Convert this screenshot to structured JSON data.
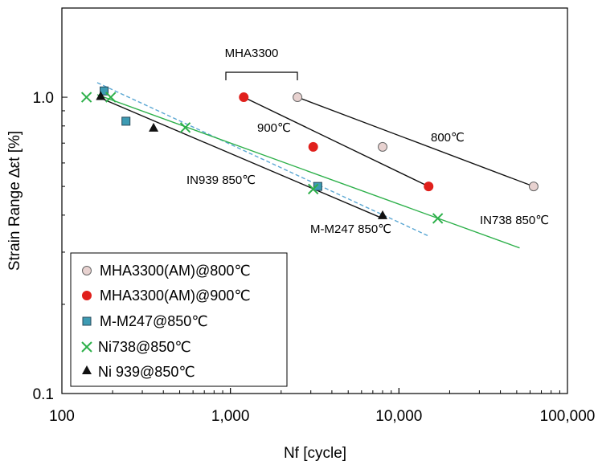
{
  "chart_data": {
    "type": "scatter",
    "xscale": "log",
    "yscale": "log",
    "xlim": [
      100,
      100000
    ],
    "ylim": [
      0.1,
      2.0
    ],
    "xlabel": "Nf  [cycle]",
    "ylabel": "Strain Range ∆εt  [%]",
    "x_ticks": [
      {
        "value": 100,
        "label": "100"
      },
      {
        "value": 1000,
        "label": "1,000"
      },
      {
        "value": 10000,
        "label": "10,000"
      },
      {
        "value": 100000,
        "label": "100,000"
      }
    ],
    "y_ticks": [
      {
        "value": 0.1,
        "label": "0.1"
      },
      {
        "value": 1.0,
        "label": "1.0"
      }
    ],
    "grid": false,
    "legend_position": "bottom-left",
    "series": [
      {
        "name": "MHA3300(AM)@800℃",
        "marker": "circle",
        "color": "#e8d2d0",
        "stroke": "#666666",
        "points": [
          [
            2500,
            1.0
          ],
          [
            8000,
            0.68
          ],
          [
            63000,
            0.5
          ]
        ],
        "fit": {
          "style": "solid",
          "color": "#111111",
          "from": [
            2500,
            1.0
          ],
          "to": [
            63000,
            0.5
          ]
        }
      },
      {
        "name": "MHA3300(AM)@900℃",
        "marker": "circle",
        "color": "#e0201c",
        "stroke": "#e0201c",
        "points": [
          [
            1200,
            1.0
          ],
          [
            3100,
            0.68
          ],
          [
            15000,
            0.5
          ]
        ],
        "fit": {
          "style": "solid",
          "color": "#111111",
          "from": [
            1200,
            1.0
          ],
          "to": [
            15000,
            0.5
          ]
        }
      },
      {
        "name": "M-M247@850℃",
        "marker": "square",
        "color": "#3d9bb3",
        "stroke": "#2a4a5a",
        "points": [
          [
            178,
            1.05
          ],
          [
            240,
            0.83
          ],
          [
            3300,
            0.5
          ]
        ],
        "fit": {
          "style": "dashed",
          "color": "#5aa7d3",
          "from": [
            162,
            1.12
          ],
          "to": [
            15000,
            0.34
          ]
        }
      },
      {
        "name": "Ni738@850℃",
        "marker": "x",
        "color": "#2db04a",
        "stroke": "#2db04a",
        "points": [
          [
            140,
            1.0
          ],
          [
            195,
            1.0
          ],
          [
            540,
            0.79
          ],
          [
            3100,
            0.49
          ],
          [
            17000,
            0.39
          ]
        ],
        "fit": {
          "style": "solid",
          "color": "#2db04a",
          "from": [
            162,
            1.02
          ],
          "to": [
            52000,
            0.31
          ]
        }
      },
      {
        "name": "Ni939@850℃",
        "marker": "triangle",
        "color": "#111111",
        "stroke": "#111111",
        "points": [
          [
            170,
            1.01
          ],
          [
            350,
            0.79
          ],
          [
            8000,
            0.4
          ]
        ],
        "fit": {
          "style": "solid",
          "color": "#111111",
          "from": [
            165,
            1.0
          ],
          "to": [
            8000,
            0.39
          ]
        }
      }
    ],
    "annotations": [
      {
        "text": "MHA3300",
        "bracket": true
      },
      {
        "text": "900℃"
      },
      {
        "text": "800℃"
      },
      {
        "text": "IN939 850℃"
      },
      {
        "text": "M-M247 850℃"
      },
      {
        "text": "IN738   850℃"
      }
    ],
    "legend_labels": [
      "MHA3300(AM)@800℃",
      "MHA3300(AM)@900℃",
      "M-M247@850℃",
      "Ni738@850℃",
      "Ni 939@850℃"
    ]
  }
}
